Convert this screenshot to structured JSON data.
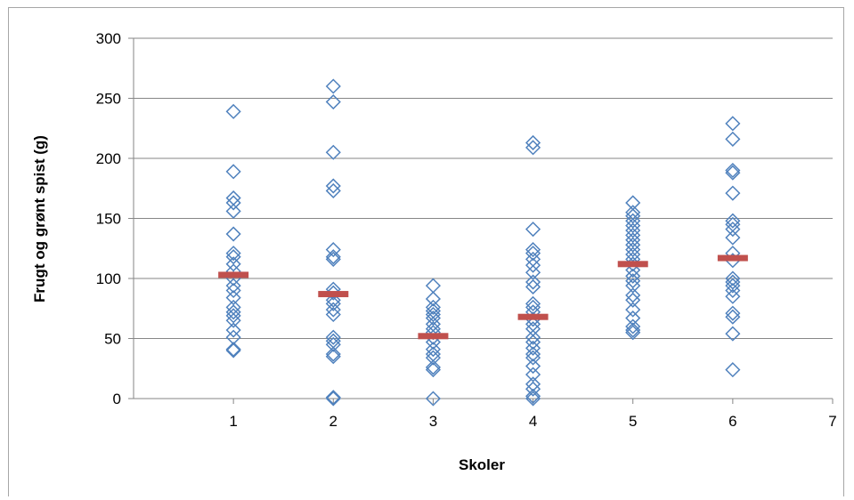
{
  "chart_data": {
    "type": "scatter",
    "title": "",
    "xlabel": "Skoler",
    "ylabel": "Frugt og grønt spist (g)",
    "xlim": [
      0,
      7
    ],
    "ylim": [
      0,
      300
    ],
    "x_ticks": [
      1,
      2,
      3,
      4,
      5,
      6,
      7
    ],
    "y_ticks": [
      0,
      50,
      100,
      150,
      200,
      250,
      300
    ],
    "grid": "horizontal",
    "legend": "none",
    "colors": {
      "points": "#4f81bd",
      "mean": "#c0504d",
      "grid": "#868686"
    },
    "series": [
      {
        "marker": "diamond-open",
        "points": [
          [
            1,
            239
          ],
          [
            1,
            189
          ],
          [
            1,
            167
          ],
          [
            1,
            163
          ],
          [
            1,
            156
          ],
          [
            1,
            137
          ],
          [
            1,
            121
          ],
          [
            1,
            118
          ],
          [
            1,
            112
          ],
          [
            1,
            106
          ],
          [
            1,
            100
          ],
          [
            1,
            94
          ],
          [
            1,
            90
          ],
          [
            1,
            84
          ],
          [
            1,
            76
          ],
          [
            1,
            72
          ],
          [
            1,
            69
          ],
          [
            1,
            65
          ],
          [
            1,
            57
          ],
          [
            1,
            51
          ],
          [
            1,
            41
          ],
          [
            1,
            40
          ],
          [
            2,
            260
          ],
          [
            2,
            247
          ],
          [
            2,
            205
          ],
          [
            2,
            177
          ],
          [
            2,
            173
          ],
          [
            2,
            124
          ],
          [
            2,
            118
          ],
          [
            2,
            116
          ],
          [
            2,
            91
          ],
          [
            2,
            88
          ],
          [
            2,
            82
          ],
          [
            2,
            79
          ],
          [
            2,
            74
          ],
          [
            2,
            70
          ],
          [
            2,
            51
          ],
          [
            2,
            48
          ],
          [
            2,
            45
          ],
          [
            2,
            37
          ],
          [
            2,
            35
          ],
          [
            2,
            1
          ],
          [
            2,
            0
          ],
          [
            3,
            94
          ],
          [
            3,
            83
          ],
          [
            3,
            76
          ],
          [
            3,
            73
          ],
          [
            3,
            70
          ],
          [
            3,
            67
          ],
          [
            3,
            62
          ],
          [
            3,
            58
          ],
          [
            3,
            55
          ],
          [
            3,
            51
          ],
          [
            3,
            47
          ],
          [
            3,
            41
          ],
          [
            3,
            37
          ],
          [
            3,
            34
          ],
          [
            3,
            26
          ],
          [
            3,
            24
          ],
          [
            3,
            0
          ],
          [
            4,
            213
          ],
          [
            4,
            209
          ],
          [
            4,
            141
          ],
          [
            4,
            124
          ],
          [
            4,
            121
          ],
          [
            4,
            116
          ],
          [
            4,
            111
          ],
          [
            4,
            105
          ],
          [
            4,
            97
          ],
          [
            4,
            93
          ],
          [
            4,
            79
          ],
          [
            4,
            76
          ],
          [
            4,
            72
          ],
          [
            4,
            66
          ],
          [
            4,
            62
          ],
          [
            4,
            58
          ],
          [
            4,
            51
          ],
          [
            4,
            47
          ],
          [
            4,
            42
          ],
          [
            4,
            37
          ],
          [
            4,
            34
          ],
          [
            4,
            27
          ],
          [
            4,
            20
          ],
          [
            4,
            12
          ],
          [
            4,
            8
          ],
          [
            4,
            2
          ],
          [
            4,
            0
          ],
          [
            5,
            163
          ],
          [
            5,
            155
          ],
          [
            5,
            152
          ],
          [
            5,
            148
          ],
          [
            5,
            144
          ],
          [
            5,
            140
          ],
          [
            5,
            136
          ],
          [
            5,
            132
          ],
          [
            5,
            128
          ],
          [
            5,
            124
          ],
          [
            5,
            120
          ],
          [
            5,
            116
          ],
          [
            5,
            112
          ],
          [
            5,
            107
          ],
          [
            5,
            102
          ],
          [
            5,
            98
          ],
          [
            5,
            94
          ],
          [
            5,
            86
          ],
          [
            5,
            82
          ],
          [
            5,
            74
          ],
          [
            5,
            67
          ],
          [
            5,
            60
          ],
          [
            5,
            57
          ],
          [
            5,
            55
          ],
          [
            6,
            229
          ],
          [
            6,
            216
          ],
          [
            6,
            190
          ],
          [
            6,
            188
          ],
          [
            6,
            171
          ],
          [
            6,
            148
          ],
          [
            6,
            145
          ],
          [
            6,
            141
          ],
          [
            6,
            134
          ],
          [
            6,
            121
          ],
          [
            6,
            115
          ],
          [
            6,
            100
          ],
          [
            6,
            97
          ],
          [
            6,
            94
          ],
          [
            6,
            90
          ],
          [
            6,
            85
          ],
          [
            6,
            71
          ],
          [
            6,
            68
          ],
          [
            6,
            54
          ],
          [
            6,
            24
          ]
        ]
      },
      {
        "marker": "mean-bar",
        "points": [
          [
            1,
            103
          ],
          [
            2,
            87
          ],
          [
            3,
            52
          ],
          [
            4,
            68
          ],
          [
            5,
            112
          ],
          [
            6,
            117
          ]
        ]
      }
    ]
  }
}
